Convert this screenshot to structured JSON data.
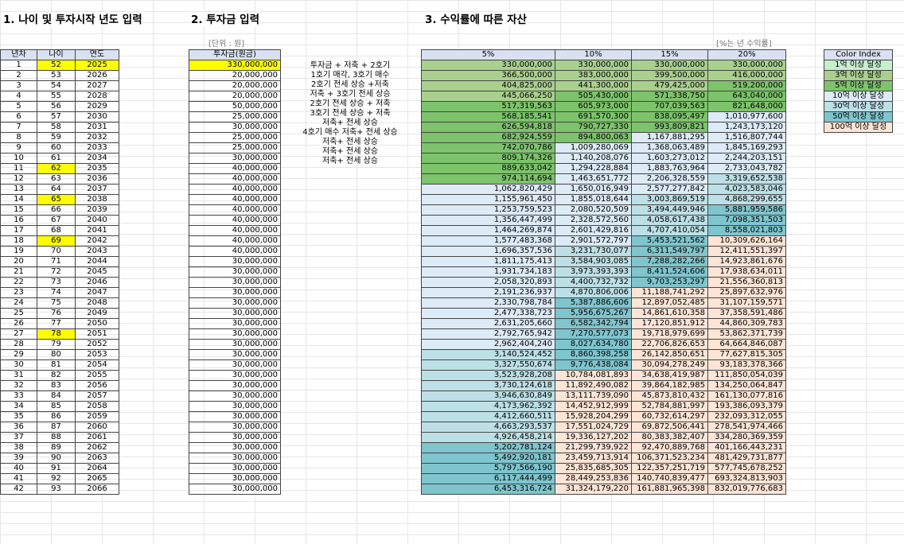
{
  "section1_title": "1. 나이 및 투자시작 년도 입력",
  "section2_title": "2. 투자금 입력",
  "section3_title": "3. 수익률에 따른 자산",
  "unit_note": "[단위 : 원]",
  "rate_note": "[%는 년 수익률]",
  "headers": {
    "year_no": "년차",
    "age": "나이",
    "year": "연도",
    "investment": "투자금(원금)"
  },
  "rate_headers": [
    "5%",
    "10%",
    "15%",
    "20%"
  ],
  "colors": {
    "header": "#d9e1f2",
    "highlight": "#ffff00",
    "g1": "#c6efce",
    "g3": "#a9d08e",
    "g5": "#7dc36c",
    "c10": "#ddebf7",
    "c30": "#bde0e6",
    "c50": "#7fc5ce",
    "p100": "#fce4d6"
  },
  "rows": [
    {
      "n": "1",
      "age": "52",
      "year": "2025",
      "inv": "330,000,000",
      "v": [
        "330,000,000",
        "330,000,000",
        "330,000,000",
        "330,000,000"
      ],
      "c": [
        "g3",
        "g3",
        "g3",
        "g3"
      ],
      "hl_age": true,
      "hl_year": true,
      "hl_inv": true
    },
    {
      "n": "2",
      "age": "53",
      "year": "2026",
      "inv": "20,000,000",
      "v": [
        "366,500,000",
        "383,000,000",
        "399,500,000",
        "416,000,000"
      ],
      "c": [
        "g3",
        "g3",
        "g3",
        "g3"
      ]
    },
    {
      "n": "3",
      "age": "54",
      "year": "2027",
      "inv": "20,000,000",
      "v": [
        "404,825,000",
        "441,300,000",
        "479,425,000",
        "519,200,000"
      ],
      "c": [
        "g3",
        "g3",
        "g3",
        "g5"
      ]
    },
    {
      "n": "4",
      "age": "55",
      "year": "2028",
      "inv": "20,000,000",
      "v": [
        "445,066,250",
        "505,430,000",
        "571,338,750",
        "643,040,000"
      ],
      "c": [
        "g3",
        "g5",
        "g5",
        "g5"
      ]
    },
    {
      "n": "5",
      "age": "56",
      "year": "2029",
      "inv": "50,000,000",
      "v": [
        "517,319,563",
        "605,973,000",
        "707,039,563",
        "821,648,000"
      ],
      "c": [
        "g5",
        "g5",
        "g5",
        "g5"
      ]
    },
    {
      "n": "6",
      "age": "57",
      "year": "2030",
      "inv": "25,000,000",
      "v": [
        "568,185,541",
        "691,570,300",
        "838,095,497",
        "1,010,977,600"
      ],
      "c": [
        "g5",
        "g5",
        "g5",
        "c10"
      ]
    },
    {
      "n": "7",
      "age": "58",
      "year": "2031",
      "inv": "30,000,000",
      "v": [
        "626,594,818",
        "790,727,330",
        "993,809,821",
        "1,243,173,120"
      ],
      "c": [
        "g5",
        "g5",
        "g5",
        "c10"
      ]
    },
    {
      "n": "8",
      "age": "59",
      "year": "2032",
      "inv": "25,000,000",
      "v": [
        "682,924,559",
        "894,800,063",
        "1,167,881,295",
        "1,516,807,744"
      ],
      "c": [
        "g5",
        "g5",
        "c10",
        "c10"
      ]
    },
    {
      "n": "9",
      "age": "60",
      "year": "2033",
      "inv": "25,000,000",
      "v": [
        "742,070,786",
        "1,009,280,069",
        "1,368,063,489",
        "1,845,169,293"
      ],
      "c": [
        "g5",
        "c10",
        "c10",
        "c10"
      ]
    },
    {
      "n": "10",
      "age": "61",
      "year": "2034",
      "inv": "30,000,000",
      "v": [
        "809,174,326",
        "1,140,208,076",
        "1,603,273,012",
        "2,244,203,151"
      ],
      "c": [
        "g5",
        "c10",
        "c10",
        "c10"
      ]
    },
    {
      "n": "11",
      "age": "62",
      "year": "2035",
      "inv": "40,000,000",
      "v": [
        "889,633,042",
        "1,294,228,884",
        "1,883,763,964",
        "2,733,043,782"
      ],
      "c": [
        "g5",
        "c10",
        "c10",
        "c10"
      ],
      "hl_age": true
    },
    {
      "n": "12",
      "age": "63",
      "year": "2036",
      "inv": "40,000,000",
      "v": [
        "974,114,694",
        "1,463,651,772",
        "2,206,328,559",
        "3,319,652,538"
      ],
      "c": [
        "g5",
        "c10",
        "c10",
        "c30"
      ]
    },
    {
      "n": "13",
      "age": "64",
      "year": "2037",
      "inv": "40,000,000",
      "v": [
        "1,062,820,429",
        "1,650,016,949",
        "2,577,277,842",
        "4,023,583,046"
      ],
      "c": [
        "c10",
        "c10",
        "c10",
        "c30"
      ]
    },
    {
      "n": "14",
      "age": "65",
      "year": "2038",
      "inv": "40,000,000",
      "v": [
        "1,155,961,450",
        "1,855,018,644",
        "3,003,869,519",
        "4,868,299,655"
      ],
      "c": [
        "c10",
        "c10",
        "c30",
        "c30"
      ],
      "hl_age": true
    },
    {
      "n": "15",
      "age": "66",
      "year": "2039",
      "inv": "40,000,000",
      "v": [
        "1,253,759,523",
        "2,080,520,509",
        "3,494,449,946",
        "5,881,959,586"
      ],
      "c": [
        "c10",
        "c10",
        "c30",
        "c50"
      ]
    },
    {
      "n": "16",
      "age": "67",
      "year": "2040",
      "inv": "40,000,000",
      "v": [
        "1,356,447,499",
        "2,328,572,560",
        "4,058,617,438",
        "7,098,351,503"
      ],
      "c": [
        "c10",
        "c10",
        "c30",
        "c50"
      ]
    },
    {
      "n": "17",
      "age": "68",
      "year": "2041",
      "inv": "40,000,000",
      "v": [
        "1,464,269,874",
        "2,601,429,816",
        "4,707,410,054",
        "8,558,021,803"
      ],
      "c": [
        "c10",
        "c10",
        "c30",
        "c50"
      ]
    },
    {
      "n": "18",
      "age": "69",
      "year": "2042",
      "inv": "40,000,000",
      "v": [
        "1,577,483,368",
        "2,901,572,797",
        "5,453,521,562",
        "10,309,626,164"
      ],
      "c": [
        "c10",
        "c10",
        "c50",
        "p100"
      ],
      "hl_age": true
    },
    {
      "n": "19",
      "age": "70",
      "year": "2043",
      "inv": "40,000,000",
      "v": [
        "1,696,357,536",
        "3,231,730,077",
        "6,311,549,797",
        "12,411,551,397"
      ],
      "c": [
        "c10",
        "c30",
        "c50",
        "p100"
      ]
    },
    {
      "n": "20",
      "age": "71",
      "year": "2044",
      "inv": "30,000,000",
      "v": [
        "1,811,175,413",
        "3,584,903,085",
        "7,288,282,266",
        "14,923,861,676"
      ],
      "c": [
        "c10",
        "c30",
        "c50",
        "p100"
      ]
    },
    {
      "n": "21",
      "age": "72",
      "year": "2045",
      "inv": "30,000,000",
      "v": [
        "1,931,734,183",
        "3,973,393,393",
        "8,411,524,606",
        "17,938,634,011"
      ],
      "c": [
        "c10",
        "c30",
        "c50",
        "p100"
      ]
    },
    {
      "n": "22",
      "age": "73",
      "year": "2046",
      "inv": "30,000,000",
      "v": [
        "2,058,320,893",
        "4,400,732,732",
        "9,703,253,297",
        "21,556,360,813"
      ],
      "c": [
        "c10",
        "c30",
        "c50",
        "p100"
      ]
    },
    {
      "n": "23",
      "age": "74",
      "year": "2047",
      "inv": "30,000,000",
      "v": [
        "2,191,236,937",
        "4,870,806,006",
        "11,188,741,292",
        "25,897,632,976"
      ],
      "c": [
        "c10",
        "c30",
        "p100",
        "p100"
      ]
    },
    {
      "n": "24",
      "age": "75",
      "year": "2048",
      "inv": "30,000,000",
      "v": [
        "2,330,798,784",
        "5,387,886,606",
        "12,897,052,485",
        "31,107,159,571"
      ],
      "c": [
        "c10",
        "c50",
        "p100",
        "p100"
      ]
    },
    {
      "n": "25",
      "age": "76",
      "year": "2049",
      "inv": "30,000,000",
      "v": [
        "2,477,338,723",
        "5,956,675,267",
        "14,861,610,358",
        "37,358,591,486"
      ],
      "c": [
        "c10",
        "c50",
        "p100",
        "p100"
      ]
    },
    {
      "n": "26",
      "age": "77",
      "year": "2050",
      "inv": "30,000,000",
      "v": [
        "2,631,205,660",
        "6,582,342,794",
        "17,120,851,912",
        "44,860,309,783"
      ],
      "c": [
        "c10",
        "c50",
        "p100",
        "p100"
      ]
    },
    {
      "n": "27",
      "age": "78",
      "year": "2051",
      "inv": "30,000,000",
      "v": [
        "2,792,765,942",
        "7,270,577,073",
        "19,718,979,699",
        "53,862,371,739"
      ],
      "c": [
        "c10",
        "c50",
        "p100",
        "p100"
      ],
      "hl_age": true
    },
    {
      "n": "28",
      "age": "79",
      "year": "2052",
      "inv": "30,000,000",
      "v": [
        "2,962,404,240",
        "8,027,634,780",
        "22,706,826,653",
        "64,664,846,087"
      ],
      "c": [
        "c10",
        "c50",
        "p100",
        "p100"
      ]
    },
    {
      "n": "29",
      "age": "80",
      "year": "2053",
      "inv": "30,000,000",
      "v": [
        "3,140,524,452",
        "8,860,398,258",
        "26,142,850,651",
        "77,627,815,305"
      ],
      "c": [
        "c30",
        "c50",
        "p100",
        "p100"
      ]
    },
    {
      "n": "30",
      "age": "81",
      "year": "2054",
      "inv": "30,000,000",
      "v": [
        "3,327,550,674",
        "9,776,438,084",
        "30,094,278,249",
        "93,183,378,366"
      ],
      "c": [
        "c30",
        "c50",
        "p100",
        "p100"
      ]
    },
    {
      "n": "31",
      "age": "82",
      "year": "2055",
      "inv": "30,000,000",
      "v": [
        "3,523,928,208",
        "10,784,081,893",
        "34,638,419,987",
        "111,850,054,039"
      ],
      "c": [
        "c30",
        "p100",
        "p100",
        "p100"
      ]
    },
    {
      "n": "32",
      "age": "83",
      "year": "2056",
      "inv": "30,000,000",
      "v": [
        "3,730,124,618",
        "11,892,490,082",
        "39,864,182,985",
        "134,250,064,847"
      ],
      "c": [
        "c30",
        "p100",
        "p100",
        "p100"
      ]
    },
    {
      "n": "33",
      "age": "84",
      "year": "2057",
      "inv": "30,000,000",
      "v": [
        "3,946,630,849",
        "13,111,739,090",
        "45,873,810,432",
        "161,130,077,816"
      ],
      "c": [
        "c30",
        "p100",
        "p100",
        "p100"
      ]
    },
    {
      "n": "34",
      "age": "85",
      "year": "2058",
      "inv": "30,000,000",
      "v": [
        "4,173,962,392",
        "14,452,912,999",
        "52,784,881,997",
        "193,386,093,379"
      ],
      "c": [
        "c30",
        "p100",
        "p100",
        "p100"
      ]
    },
    {
      "n": "35",
      "age": "86",
      "year": "2059",
      "inv": "30,000,000",
      "v": [
        "4,412,660,511",
        "15,928,204,299",
        "60,732,614,297",
        "232,093,312,055"
      ],
      "c": [
        "c30",
        "p100",
        "p100",
        "p100"
      ]
    },
    {
      "n": "36",
      "age": "87",
      "year": "2060",
      "inv": "30,000,000",
      "v": [
        "4,663,293,537",
        "17,551,024,729",
        "69,872,506,441",
        "278,541,974,466"
      ],
      "c": [
        "c30",
        "p100",
        "p100",
        "p100"
      ]
    },
    {
      "n": "37",
      "age": "88",
      "year": "2061",
      "inv": "30,000,000",
      "v": [
        "4,926,458,214",
        "19,336,127,202",
        "80,383,382,407",
        "334,280,369,359"
      ],
      "c": [
        "c30",
        "p100",
        "p100",
        "p100"
      ]
    },
    {
      "n": "38",
      "age": "89",
      "year": "2062",
      "inv": "30,000,000",
      "v": [
        "5,202,781,124",
        "21,299,739,922",
        "92,470,889,768",
        "401,166,443,231"
      ],
      "c": [
        "c50",
        "p100",
        "p100",
        "p100"
      ]
    },
    {
      "n": "39",
      "age": "90",
      "year": "2063",
      "inv": "30,000,000",
      "v": [
        "5,492,920,181",
        "23,459,713,914",
        "106,371,523,234",
        "481,429,731,877"
      ],
      "c": [
        "c50",
        "p100",
        "p100",
        "p100"
      ]
    },
    {
      "n": "40",
      "age": "91",
      "year": "2064",
      "inv": "30,000,000",
      "v": [
        "5,797,566,190",
        "25,835,685,305",
        "122,357,251,719",
        "577,745,678,252"
      ],
      "c": [
        "c50",
        "p100",
        "p100",
        "p100"
      ]
    },
    {
      "n": "41",
      "age": "92",
      "year": "2065",
      "inv": "30,000,000",
      "v": [
        "6,117,444,499",
        "28,449,253,836",
        "140,740,839,477",
        "693,324,813,903"
      ],
      "c": [
        "c50",
        "p100",
        "p100",
        "p100"
      ]
    },
    {
      "n": "42",
      "age": "93",
      "year": "2066",
      "inv": "30,000,000",
      "v": [
        "6,453,316,724",
        "31,324,179,220",
        "161,881,965,398",
        "832,019,776,683"
      ],
      "c": [
        "c50",
        "p100",
        "p100",
        "p100"
      ]
    }
  ],
  "notes": [
    "투자금 + 저축 + 2호기",
    "1호기 매각, 3호기 매수",
    "2호기 전세 상승 +저축",
    "저축 + 3호기 전세 상승",
    "2호기 전세 상승 + 저축",
    "3호기 전세 상승 + 저축",
    "저축+ 전세 상승",
    "4호기 매수 저축+ 전세 상승",
    "저축+ 전세 상승",
    "저축+ 전세 상승",
    "저축+ 전세 상승"
  ],
  "legend": {
    "title": "Color Index",
    "items": [
      {
        "label": "1억 이상 달성",
        "c": "g1"
      },
      {
        "label": "3억 이상 달성",
        "c": "g3"
      },
      {
        "label": "5억 이상 달성",
        "c": "g5"
      },
      {
        "label": "10억 이상 달성",
        "c": "c10"
      },
      {
        "label": "30억 이상 달성",
        "c": "c30"
      },
      {
        "label": "50억 이상 달성",
        "c": "c50"
      },
      {
        "label": "100억 이상 달성",
        "c": "p100"
      }
    ]
  }
}
